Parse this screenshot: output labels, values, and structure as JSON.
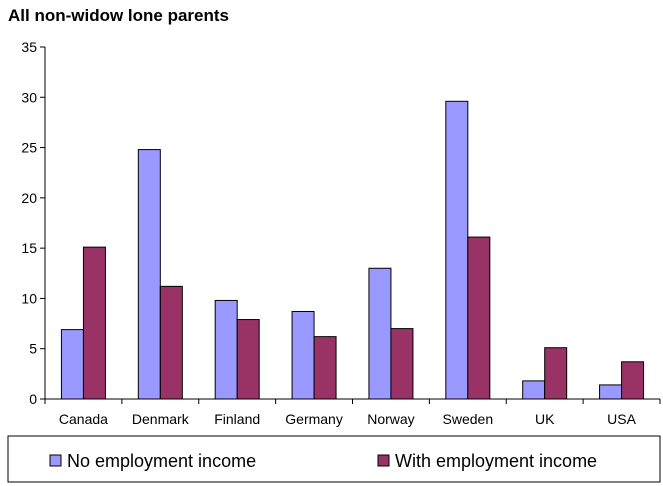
{
  "chart_data": {
    "type": "bar",
    "title": "All non-widow lone parents",
    "xlabel": "",
    "ylabel": "",
    "categories": [
      "Canada",
      "Denmark",
      "Finland",
      "Germany",
      "Norway",
      "Sweden",
      "UK",
      "USA"
    ],
    "series": [
      {
        "name": "No employment income",
        "values": [
          6.9,
          24.8,
          9.8,
          8.7,
          13.0,
          29.6,
          1.8,
          1.4
        ],
        "color": "#9999ff"
      },
      {
        "name": "With employment income",
        "values": [
          15.1,
          11.2,
          7.9,
          6.2,
          7.0,
          16.1,
          5.1,
          3.7
        ],
        "color": "#993366"
      }
    ],
    "ylim": [
      0,
      35
    ],
    "yticks": [
      0,
      5,
      10,
      15,
      20,
      25,
      30,
      35
    ],
    "grid": false,
    "legend_position": "bottom"
  }
}
